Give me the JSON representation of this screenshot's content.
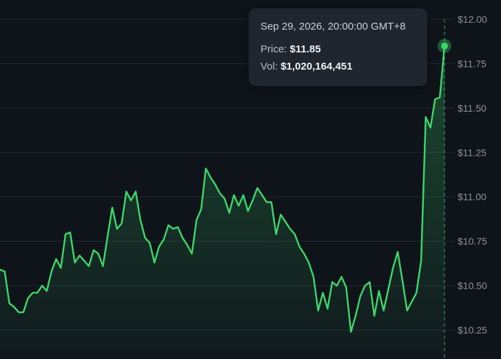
{
  "chart_data": {
    "type": "area",
    "series": [
      {
        "values": [
          10.59,
          10.58,
          10.4,
          10.38,
          10.35,
          10.35,
          10.43,
          10.46,
          10.46,
          10.5,
          10.47,
          10.58,
          10.65,
          10.6,
          10.79,
          10.8,
          10.63,
          10.67,
          10.64,
          10.61,
          10.7,
          10.68,
          10.61,
          10.78,
          10.94,
          10.82,
          10.85,
          11.03,
          10.98,
          11.03,
          10.87,
          10.77,
          10.74,
          10.63,
          10.72,
          10.76,
          10.84,
          10.82,
          10.83,
          10.77,
          10.73,
          10.68,
          10.87,
          10.93,
          11.16,
          11.11,
          11.07,
          11.02,
          10.99,
          10.91,
          11.01,
          10.95,
          11.01,
          10.92,
          10.98,
          11.05,
          11.01,
          10.97,
          10.97,
          10.79,
          10.9,
          10.86,
          10.82,
          10.79,
          10.72,
          10.68,
          10.63,
          10.55,
          10.36,
          10.46,
          10.37,
          10.52,
          10.5,
          10.55,
          10.49,
          10.24,
          10.33,
          10.44,
          10.5,
          10.52,
          10.33,
          10.47,
          10.36,
          10.48,
          10.6,
          10.69,
          10.53,
          10.36,
          10.41,
          10.46,
          10.64,
          11.45,
          11.39,
          11.55,
          11.56,
          11.85
        ]
      }
    ],
    "ylim": [
      10.15,
      12.02
    ],
    "yticks": [
      "$12.00",
      "$11.75",
      "$11.50",
      "$11.25",
      "$11.00",
      "$10.75",
      "$10.50",
      "$10.25"
    ],
    "ytick_values": [
      12.0,
      11.75,
      11.5,
      11.25,
      11.0,
      10.75,
      10.5,
      10.25
    ],
    "grid": true,
    "line_color": "#3fd46a",
    "fill_color": "#3fd46a"
  },
  "tooltip": {
    "date": "Sep 29, 2026, 20:00:00 GMT+8",
    "price_label": "Price:",
    "price_value": "$11.85",
    "vol_label": "Vol:",
    "vol_value": "$1,020,164,451"
  }
}
